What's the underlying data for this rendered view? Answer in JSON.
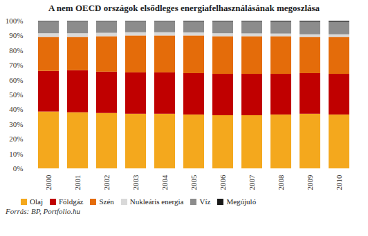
{
  "chart_data": {
    "type": "bar",
    "stacked": true,
    "title": "A nem OECD országok elsődleges energiafelhasználásának megoszlása",
    "source": "Forrás: BP, Portfolio.hu",
    "categories": [
      "2000",
      "2001",
      "2002",
      "2003",
      "2004",
      "2005",
      "2006",
      "2007",
      "2008",
      "2009",
      "2010"
    ],
    "series": [
      {
        "name": "Olaj",
        "color": "#f4a81d",
        "values": [
          38.5,
          38,
          37.5,
          37,
          37,
          36.5,
          36,
          36,
          36.5,
          37,
          36.5
        ]
      },
      {
        "name": "Földgáz",
        "color": "#c00000",
        "values": [
          27.5,
          28.5,
          28,
          28,
          28,
          28,
          28,
          28,
          27.5,
          27.5,
          27.5
        ]
      },
      {
        "name": "Szén",
        "color": "#e46c0a",
        "values": [
          23,
          22.5,
          24,
          25,
          25,
          25.5,
          25.5,
          25.5,
          25.5,
          24.5,
          25
        ]
      },
      {
        "name": "Nukleáris energia",
        "color": "#d9d9d9",
        "values": [
          2.5,
          2.5,
          2.3,
          2.2,
          2.2,
          2.1,
          2.0,
          1.9,
          1.8,
          1.8,
          1.8
        ]
      },
      {
        "name": "Víz",
        "color": "#8c8c8c",
        "values": [
          8.2,
          8.2,
          7.9,
          7.5,
          7.5,
          7.5,
          8.1,
          8.2,
          8.2,
          8.6,
          8.5
        ]
      },
      {
        "name": "Megújuló",
        "color": "#1a1a1a",
        "values": [
          0.3,
          0.3,
          0.3,
          0.3,
          0.3,
          0.4,
          0.4,
          0.4,
          0.5,
          0.6,
          0.7
        ]
      }
    ],
    "ylim": [
      0,
      100
    ],
    "yticks": [
      {
        "value": 0,
        "label": "0%"
      },
      {
        "value": 10,
        "label": "10%"
      },
      {
        "value": 20,
        "label": "20%"
      },
      {
        "value": 30,
        "label": "30%"
      },
      {
        "value": 40,
        "label": "40%"
      },
      {
        "value": 50,
        "label": "50%"
      },
      {
        "value": 60,
        "label": "60%"
      },
      {
        "value": 70,
        "label": "70%"
      },
      {
        "value": 80,
        "label": "80%"
      },
      {
        "value": 90,
        "label": "90%"
      },
      {
        "value": 100,
        "label": "100%"
      }
    ],
    "grid": false,
    "legend": "bottom"
  }
}
